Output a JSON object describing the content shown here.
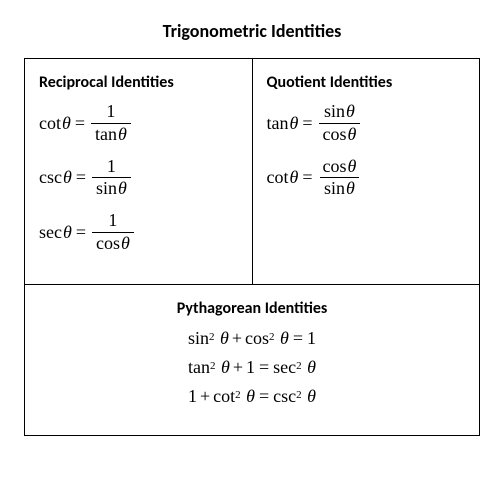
{
  "title": "Trigonometric Identities",
  "sections": {
    "reciprocal": {
      "title": "Reciprocal Identities",
      "identities": [
        {
          "lhs_fn": "cot",
          "num": "1",
          "den_fn": "tan"
        },
        {
          "lhs_fn": "csc",
          "num": "1",
          "den_fn": "sin"
        },
        {
          "lhs_fn": "sec",
          "num": "1",
          "den_fn": "cos"
        }
      ]
    },
    "quotient": {
      "title": "Quotient Identities",
      "identities": [
        {
          "lhs_fn": "tan",
          "num_fn": "sin",
          "den_fn": "cos"
        },
        {
          "lhs_fn": "cot",
          "num_fn": "cos",
          "den_fn": "sin"
        }
      ]
    },
    "pythagorean": {
      "title": "Pythagorean Identities",
      "identities": [
        {
          "t1_fn": "sin",
          "t2_fn": "cos",
          "rhs": "1"
        },
        {
          "t1_fn": "tan",
          "t2_const": "1",
          "rhs_fn": "sec"
        },
        {
          "t1_const": "1",
          "t2_fn": "cot",
          "rhs_fn": "csc"
        }
      ]
    }
  },
  "theta": "θ",
  "colors": {
    "fg": "#000000",
    "bg": "#ffffff",
    "border": "#000000"
  },
  "fonts": {
    "heading": "Calibri",
    "math": "Times New Roman",
    "title_size_pt": 14,
    "math_size_pt": 13
  }
}
